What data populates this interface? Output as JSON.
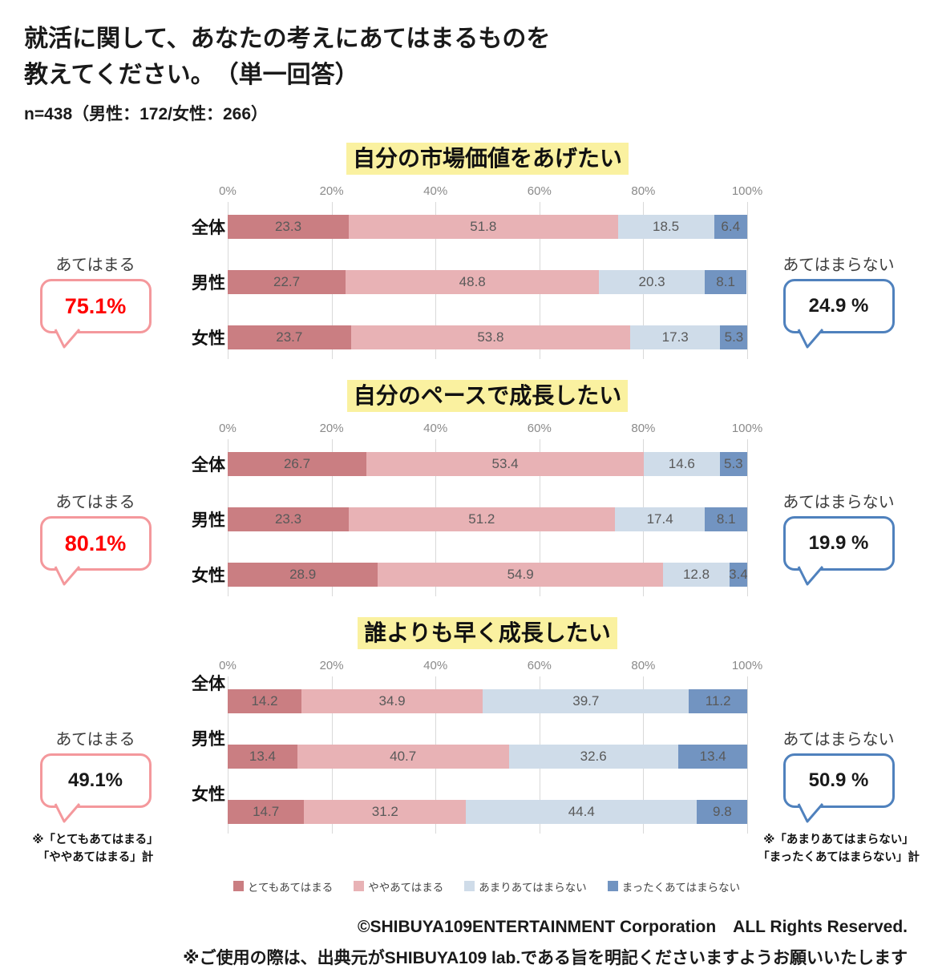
{
  "header": {
    "title_line1": "就活に関して、あなたの考えにあてはまるものを",
    "title_line2": "教えてください。　（単一回答）",
    "sample_note": "n=438（男性：172/女性：266）"
  },
  "colors": {
    "series": [
      "#CA7E82",
      "#E8B2B5",
      "#CFDCE9",
      "#7294C1"
    ],
    "highlight_yellow": "#FAF1A0",
    "value_text": "#595959",
    "axis_text": "#8A8A8A",
    "gridline": "#D9D9D9",
    "applies_border": "#F4989C",
    "applies_value_red": "#FF0000",
    "not_applies_border": "#4F81BD",
    "black_value": "#1A1A1A"
  },
  "legend": [
    {
      "label": "とてもあてはまる",
      "color": "#CA7E82"
    },
    {
      "label": "ややあてはまる",
      "color": "#E8B2B5"
    },
    {
      "label": "あまりあてはまらない",
      "color": "#CFDCE9"
    },
    {
      "label": "まったくあてはまらない",
      "color": "#7294C1"
    }
  ],
  "chart_data": [
    {
      "type": "bar",
      "stacked": true,
      "orientation": "horizontal",
      "title": "自分の市場価値をあげたい",
      "categories": [
        "全体",
        "男性",
        "女性"
      ],
      "series": [
        {
          "name": "とてもあてはまる",
          "values": [
            23.3,
            22.7,
            23.7
          ]
        },
        {
          "name": "ややあてはまる",
          "values": [
            51.8,
            48.8,
            53.8
          ]
        },
        {
          "name": "あまりあてはまらない",
          "values": [
            18.5,
            20.3,
            17.3
          ]
        },
        {
          "name": "まったくあてはまらない",
          "values": [
            6.4,
            8.1,
            5.3
          ]
        }
      ],
      "xlim": [
        0,
        100
      ],
      "x_ticks": [
        "0%",
        "20%",
        "40%",
        "60%",
        "80%",
        "100%"
      ],
      "category_label_position": "middle",
      "callout_left": {
        "label": "あてはまる",
        "value": "75.1%",
        "value_color": "#FF0000"
      },
      "callout_right": {
        "label": "あてはまらない",
        "value": "24.9 %",
        "value_color": "#1A1A1A"
      }
    },
    {
      "type": "bar",
      "stacked": true,
      "orientation": "horizontal",
      "title": "自分のペースで成長したい",
      "categories": [
        "全体",
        "男性",
        "女性"
      ],
      "series": [
        {
          "name": "とてもあてはまる",
          "values": [
            26.7,
            23.3,
            28.9
          ]
        },
        {
          "name": "ややあてはまる",
          "values": [
            53.4,
            51.2,
            54.9
          ]
        },
        {
          "name": "あまりあてはまらない",
          "values": [
            14.6,
            17.4,
            12.8
          ]
        },
        {
          "name": "まったくあてはまらない",
          "values": [
            5.3,
            8.1,
            3.4
          ]
        }
      ],
      "xlim": [
        0,
        100
      ],
      "x_ticks": [
        "0%",
        "20%",
        "40%",
        "60%",
        "80%",
        "100%"
      ],
      "category_label_position": "middle",
      "callout_left": {
        "label": "あてはまる",
        "value": "80.1%",
        "value_color": "#FF0000"
      },
      "callout_right": {
        "label": "あてはまらない",
        "value": "19.9 %",
        "value_color": "#1A1A1A"
      }
    },
    {
      "type": "bar",
      "stacked": true,
      "orientation": "horizontal",
      "title": "誰よりも早く成長したい",
      "categories": [
        "全体",
        "男性",
        "女性"
      ],
      "series": [
        {
          "name": "とてもあてはまる",
          "values": [
            14.2,
            13.4,
            14.7
          ]
        },
        {
          "name": "ややあてはまる",
          "values": [
            34.9,
            40.7,
            31.2
          ]
        },
        {
          "name": "あまりあてはまらない",
          "values": [
            39.7,
            32.6,
            44.4
          ]
        },
        {
          "name": "まったくあてはまらない",
          "values": [
            11.2,
            13.4,
            9.8
          ]
        }
      ],
      "xlim": [
        0,
        100
      ],
      "x_ticks": [
        "0%",
        "20%",
        "40%",
        "60%",
        "80%",
        "100%"
      ],
      "category_label_position": "top",
      "callout_left": {
        "label": "あてはまる",
        "value": "49.1%",
        "value_color": "#1A1A1A",
        "footnote": [
          "※「とてもあてはまる」",
          "「ややあてはまる」計"
        ]
      },
      "callout_right": {
        "label": "あてはまらない",
        "value": "50.9 %",
        "value_color": "#1A1A1A",
        "footnote": [
          "※「あまりあてはまらない」",
          "「まったくあてはまらない」計"
        ]
      }
    }
  ],
  "footer": {
    "copyright": "©SHIBUYA109ENTERTAINMENT Corporation　ALL Rights Reserved.",
    "usage_note": "※ご使用の際は、出典元がSHIBUYA109 lab.である旨を明記くださいますようお願いいたします"
  }
}
